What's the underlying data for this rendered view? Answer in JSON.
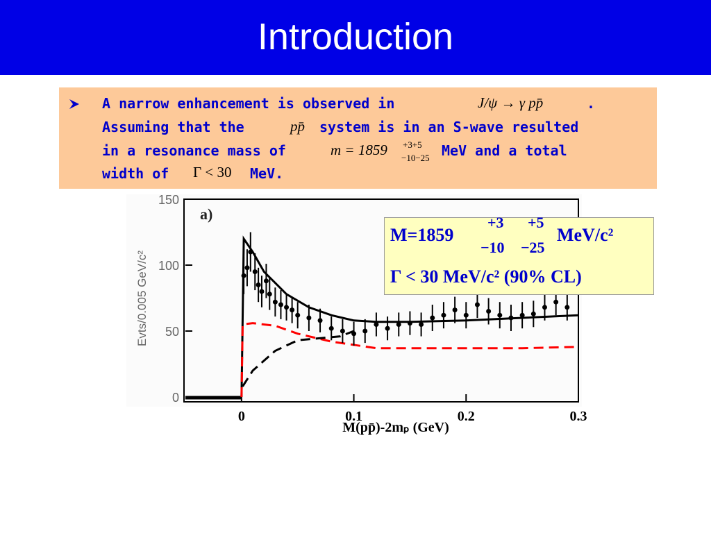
{
  "header": {
    "title": "Introduction"
  },
  "bullet": {
    "text": [
      "A narrow enhancement is observed in",
      ".",
      "Assuming that the",
      "system is in an S-wave resulted",
      "in a resonance mass of",
      "MeV and a total",
      "width of",
      "MeV."
    ],
    "math": [
      "J/ψ → γ pp̄",
      "pp̄",
      "m = 1859",
      "+3+5",
      "−10−25",
      "Γ < 30"
    ]
  },
  "result_box": {
    "lines": [
      "M=1859",
      "+3",
      "+5",
      "−10",
      "−25",
      "MeV/c²",
      "Γ < 30 MeV/c² (90% CL)"
    ]
  },
  "chart_data": {
    "type": "scatter",
    "panel_label": "a)",
    "y_label": "Evts/0.005 GeV/c²",
    "x_label": "M(pp̄)-2mₚ (GeV)",
    "xlim": [
      -0.05,
      0.3
    ],
    "xticks": [
      0,
      0.1,
      0.2,
      0.3
    ],
    "ylim": [
      0,
      150
    ],
    "yticks": [
      0,
      50,
      100,
      150
    ],
    "points": {
      "color": "#000000",
      "x": [
        0.002,
        0.005,
        0.008,
        0.012,
        0.015,
        0.018,
        0.022,
        0.025,
        0.03,
        0.035,
        0.04,
        0.045,
        0.05,
        0.06,
        0.07,
        0.08,
        0.09,
        0.1,
        0.11,
        0.12,
        0.13,
        0.14,
        0.15,
        0.16,
        0.17,
        0.18,
        0.19,
        0.2,
        0.21,
        0.22,
        0.23,
        0.24,
        0.25,
        0.26,
        0.27,
        0.28,
        0.29
      ],
      "values": [
        92,
        98,
        110,
        95,
        85,
        80,
        88,
        78,
        72,
        70,
        68,
        66,
        62,
        60,
        58,
        52,
        50,
        48,
        50,
        55,
        52,
        55,
        56,
        55,
        60,
        62,
        66,
        62,
        70,
        65,
        62,
        60,
        62,
        63,
        68,
        72,
        68
      ],
      "errors": [
        14,
        14,
        15,
        14,
        13,
        12,
        13,
        12,
        11,
        11,
        10,
        10,
        10,
        10,
        9,
        9,
        9,
        9,
        9,
        9,
        9,
        9,
        9,
        9,
        10,
        10,
        10,
        10,
        10,
        10,
        10,
        10,
        10,
        10,
        10,
        10,
        10
      ]
    },
    "curves": [
      {
        "color": "#000000",
        "style": "solid",
        "x": [
          0,
          0.002,
          0.01,
          0.02,
          0.04,
          0.06,
          0.08,
          0.1,
          0.12,
          0.15,
          0.2,
          0.25,
          0.3
        ],
        "values": [
          0,
          120,
          110,
          95,
          78,
          68,
          62,
          58,
          57,
          57,
          58,
          60,
          62
        ]
      },
      {
        "color": "#ff0000",
        "style": "dashed",
        "x": [
          0,
          0.001,
          0.01,
          0.03,
          0.05,
          0.08,
          0.12,
          0.2,
          0.25,
          0.3
        ],
        "values": [
          0,
          55,
          56,
          54,
          48,
          42,
          37,
          37,
          37,
          38
        ]
      },
      {
        "color": "#000000",
        "style": "dashed",
        "x": [
          0.001,
          0.01,
          0.03,
          0.05,
          0.088,
          0.1
        ],
        "values": [
          8,
          20,
          35,
          43,
          46,
          50
        ]
      }
    ]
  }
}
